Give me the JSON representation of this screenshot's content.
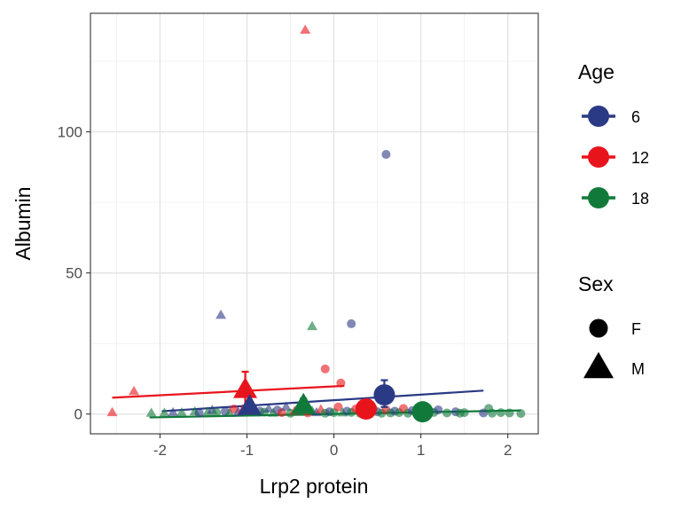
{
  "chart_data": {
    "type": "scatter",
    "xlabel": "Lrp2 protein",
    "ylabel": "Albumin",
    "xlim": [
      -2.8,
      2.35
    ],
    "ylim": [
      -7,
      142
    ],
    "x_ticks": [
      -2,
      -1,
      0,
      1,
      2
    ],
    "x_tick_labels": [
      "-2",
      "-1",
      "0",
      "1",
      "2"
    ],
    "y_ticks": [
      0,
      50,
      100
    ],
    "y_tick_labels": [
      "0",
      "50",
      "100"
    ],
    "grid": true,
    "legend_placement": "right",
    "colors": {
      "6": "#2b3a84",
      "12": "#e8141c",
      "18": "#117a3a"
    },
    "age_legend": {
      "title": "Age",
      "entries": [
        "6",
        "12",
        "18"
      ]
    },
    "sex_legend": {
      "title": "Sex",
      "entries": [
        "F",
        "M"
      ]
    },
    "points": [
      {
        "x": -0.33,
        "y": 136,
        "age": "12",
        "sex": "M"
      },
      {
        "x": 0.6,
        "y": 92,
        "age": "6",
        "sex": "F"
      },
      {
        "x": -1.3,
        "y": 35,
        "age": "6",
        "sex": "M"
      },
      {
        "x": -0.25,
        "y": 31,
        "age": "18",
        "sex": "M"
      },
      {
        "x": 0.2,
        "y": 32,
        "age": "6",
        "sex": "F"
      },
      {
        "x": -0.1,
        "y": 16,
        "age": "12",
        "sex": "F"
      },
      {
        "x": 0.08,
        "y": 11,
        "age": "12",
        "sex": "F"
      },
      {
        "x": -2.3,
        "y": 8,
        "age": "12",
        "sex": "M"
      },
      {
        "x": -2.55,
        "y": 0.5,
        "age": "12",
        "sex": "M"
      },
      {
        "x": -2.1,
        "y": 0.3,
        "age": "18",
        "sex": "M"
      },
      {
        "x": -1.95,
        "y": 0.3,
        "age": "18",
        "sex": "M"
      },
      {
        "x": -1.85,
        "y": 0.5,
        "age": "6",
        "sex": "M"
      },
      {
        "x": -1.75,
        "y": 0.4,
        "age": "18",
        "sex": "M"
      },
      {
        "x": -1.6,
        "y": 0.8,
        "age": "18",
        "sex": "M"
      },
      {
        "x": -1.55,
        "y": 0.4,
        "age": "6",
        "sex": "F"
      },
      {
        "x": -1.45,
        "y": 0.7,
        "age": "18",
        "sex": "M"
      },
      {
        "x": -1.4,
        "y": 1.3,
        "age": "6",
        "sex": "M"
      },
      {
        "x": -1.35,
        "y": 0.5,
        "age": "18",
        "sex": "F"
      },
      {
        "x": -1.25,
        "y": 0.9,
        "age": "6",
        "sex": "F"
      },
      {
        "x": -1.2,
        "y": 0.3,
        "age": "18",
        "sex": "M"
      },
      {
        "x": -1.15,
        "y": 1.8,
        "age": "12",
        "sex": "F"
      },
      {
        "x": -1.1,
        "y": 0.6,
        "age": "6",
        "sex": "M"
      },
      {
        "x": -1.05,
        "y": 1.5,
        "age": "12",
        "sex": "M"
      },
      {
        "x": -0.95,
        "y": 2.3,
        "age": "6",
        "sex": "F"
      },
      {
        "x": -0.9,
        "y": 0.4,
        "age": "18",
        "sex": "M"
      },
      {
        "x": -0.85,
        "y": 1.0,
        "age": "6",
        "sex": "F"
      },
      {
        "x": -0.8,
        "y": 0.7,
        "age": "18",
        "sex": "F"
      },
      {
        "x": -0.75,
        "y": 1.8,
        "age": "6",
        "sex": "M"
      },
      {
        "x": -0.7,
        "y": 0.3,
        "age": "18",
        "sex": "M"
      },
      {
        "x": -0.65,
        "y": 1.4,
        "age": "6",
        "sex": "F"
      },
      {
        "x": -0.6,
        "y": 0.5,
        "age": "12",
        "sex": "F"
      },
      {
        "x": -0.55,
        "y": 2.5,
        "age": "6",
        "sex": "M"
      },
      {
        "x": -0.5,
        "y": 0.3,
        "age": "18",
        "sex": "F"
      },
      {
        "x": -0.45,
        "y": 1.0,
        "age": "12",
        "sex": "M"
      },
      {
        "x": -0.4,
        "y": 0.6,
        "age": "18",
        "sex": "M"
      },
      {
        "x": -0.35,
        "y": 2.0,
        "age": "6",
        "sex": "F"
      },
      {
        "x": -0.3,
        "y": 0.4,
        "age": "12",
        "sex": "F"
      },
      {
        "x": -0.25,
        "y": 1.0,
        "age": "18",
        "sex": "M"
      },
      {
        "x": -0.2,
        "y": 0.5,
        "age": "6",
        "sex": "M"
      },
      {
        "x": -0.15,
        "y": 1.5,
        "age": "12",
        "sex": "M"
      },
      {
        "x": -0.1,
        "y": 0.3,
        "age": "18",
        "sex": "F"
      },
      {
        "x": -0.05,
        "y": 0.8,
        "age": "6",
        "sex": "F"
      },
      {
        "x": 0.0,
        "y": 0.5,
        "age": "18",
        "sex": "F"
      },
      {
        "x": 0.05,
        "y": 2.5,
        "age": "12",
        "sex": "F"
      },
      {
        "x": 0.1,
        "y": 0.4,
        "age": "18",
        "sex": "M"
      },
      {
        "x": 0.15,
        "y": 1.0,
        "age": "6",
        "sex": "F"
      },
      {
        "x": 0.2,
        "y": 0.6,
        "age": "18",
        "sex": "F"
      },
      {
        "x": 0.25,
        "y": 1.8,
        "age": "12",
        "sex": "F"
      },
      {
        "x": 0.3,
        "y": 0.3,
        "age": "18",
        "sex": "F"
      },
      {
        "x": 0.35,
        "y": 1.2,
        "age": "6",
        "sex": "F"
      },
      {
        "x": 0.4,
        "y": 0.4,
        "age": "18",
        "sex": "F"
      },
      {
        "x": 0.45,
        "y": 2.0,
        "age": "12",
        "sex": "F"
      },
      {
        "x": 0.5,
        "y": 0.8,
        "age": "6",
        "sex": "F"
      },
      {
        "x": 0.55,
        "y": 0.3,
        "age": "18",
        "sex": "F"
      },
      {
        "x": 0.6,
        "y": 1.5,
        "age": "12",
        "sex": "F"
      },
      {
        "x": 0.65,
        "y": 0.4,
        "age": "18",
        "sex": "F"
      },
      {
        "x": 0.7,
        "y": 1.0,
        "age": "6",
        "sex": "F"
      },
      {
        "x": 0.75,
        "y": 0.5,
        "age": "18",
        "sex": "F"
      },
      {
        "x": 0.8,
        "y": 2.0,
        "age": "12",
        "sex": "F"
      },
      {
        "x": 0.85,
        "y": 0.3,
        "age": "18",
        "sex": "F"
      },
      {
        "x": 0.9,
        "y": 1.2,
        "age": "6",
        "sex": "F"
      },
      {
        "x": 0.95,
        "y": 0.5,
        "age": "18",
        "sex": "F"
      },
      {
        "x": 1.0,
        "y": 1.8,
        "age": "12",
        "sex": "F"
      },
      {
        "x": 1.05,
        "y": 0.4,
        "age": "18",
        "sex": "F"
      },
      {
        "x": 1.1,
        "y": 1.0,
        "age": "6",
        "sex": "F"
      },
      {
        "x": 1.15,
        "y": 0.6,
        "age": "18",
        "sex": "F"
      },
      {
        "x": 1.2,
        "y": 1.5,
        "age": "6",
        "sex": "F"
      },
      {
        "x": 1.3,
        "y": 0.4,
        "age": "18",
        "sex": "F"
      },
      {
        "x": 1.4,
        "y": 0.8,
        "age": "6",
        "sex": "F"
      },
      {
        "x": 1.45,
        "y": 0.3,
        "age": "18",
        "sex": "F"
      },
      {
        "x": 1.5,
        "y": 0.5,
        "age": "18",
        "sex": "F"
      },
      {
        "x": 1.72,
        "y": 0.4,
        "age": "6",
        "sex": "F"
      },
      {
        "x": 1.78,
        "y": 2.0,
        "age": "18",
        "sex": "F"
      },
      {
        "x": 1.82,
        "y": 0.3,
        "age": "18",
        "sex": "F"
      },
      {
        "x": 1.92,
        "y": 0.5,
        "age": "18",
        "sex": "F"
      },
      {
        "x": 2.02,
        "y": 0.4,
        "age": "18",
        "sex": "F"
      },
      {
        "x": 2.15,
        "y": 0.2,
        "age": "18",
        "sex": "F"
      }
    ],
    "trend_lines": [
      {
        "age": "12",
        "x": [
          -2.55,
          0.12
        ],
        "y": [
          5.8,
          10.0
        ]
      },
      {
        "age": "6",
        "x": [
          -1.98,
          1.72
        ],
        "y": [
          1.0,
          8.3
        ]
      },
      {
        "age": "18",
        "x": [
          -2.12,
          2.15
        ],
        "y": [
          -1.2,
          1.3
        ]
      }
    ],
    "means": [
      {
        "age": "12",
        "sex": "M",
        "x": -1.02,
        "y": 8.5,
        "ci": [
          2.5,
          15.0
        ]
      },
      {
        "age": "6",
        "sex": "F",
        "x": 0.58,
        "y": 6.8,
        "ci": [
          2.5,
          12.0
        ]
      },
      {
        "age": "6",
        "sex": "M",
        "x": -0.97,
        "y": 2.5,
        "ci": [
          0.5,
          4.5
        ]
      },
      {
        "age": "18",
        "sex": "M",
        "x": -0.35,
        "y": 3.0,
        "ci": [
          1.0,
          5.5
        ]
      },
      {
        "age": "12",
        "sex": "F",
        "x": 0.37,
        "y": 1.8,
        "ci": [
          0.5,
          3.5
        ]
      },
      {
        "age": "18",
        "sex": "F",
        "x": 1.02,
        "y": 0.8,
        "ci": [
          0.2,
          1.6
        ]
      }
    ]
  }
}
